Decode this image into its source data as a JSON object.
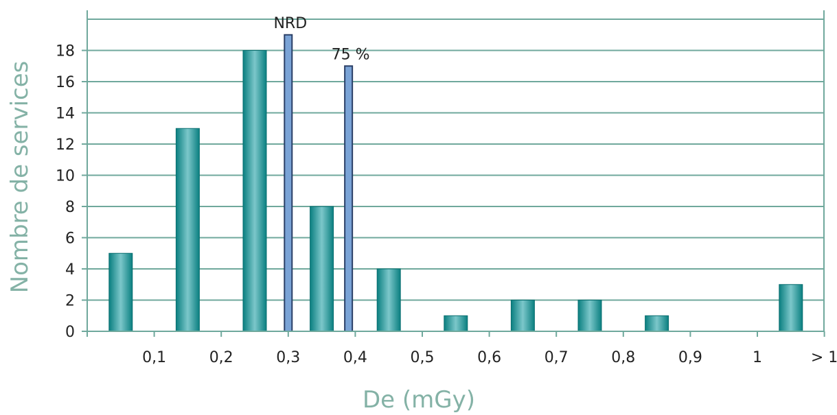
{
  "chart_data": {
    "type": "bar",
    "xlabel": "De (mGy)",
    "ylabel": "Nombre de services",
    "ylim": [
      0,
      20
    ],
    "y_ticks": [
      0,
      2,
      4,
      6,
      8,
      10,
      12,
      14,
      16,
      18
    ],
    "x_tick_labels": [
      "0,1",
      "0,2",
      "0,3",
      "0,4",
      "0,5",
      "0,6",
      "0,7",
      "0,8",
      "0,9",
      "1",
      "> 1"
    ],
    "bins": [
      "0-0,1",
      "0,1-0,2",
      "0,2-0,3",
      "0,3-0,4",
      "0,4-0,5",
      "0,5-0,6",
      "0,6-0,7",
      "0,7-0,8",
      "0,8-0,9",
      "0,9-1",
      "> 1"
    ],
    "values": [
      5,
      13,
      18,
      8,
      4,
      1,
      2,
      2,
      1,
      0,
      3
    ],
    "grid": true,
    "reference_lines": [
      {
        "label": "NRD",
        "x": 0.3,
        "height": 19
      },
      {
        "label": "75 %",
        "x": 0.39,
        "height": 17
      }
    ],
    "colors": {
      "bar": "#0e8a8a",
      "bar_light": "#7cc7ca",
      "reference": "#7aa3d6",
      "grid": "#6fa89c",
      "axis_title": "#84b2a6"
    }
  }
}
